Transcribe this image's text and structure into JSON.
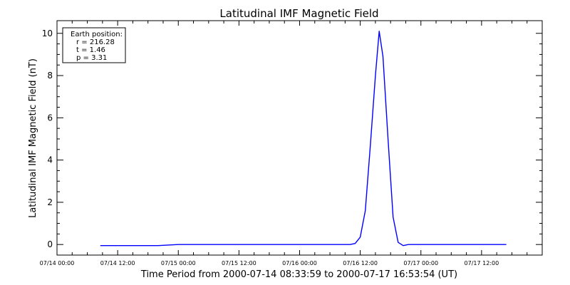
{
  "chart_data": {
    "type": "line",
    "title": "Latitudinal IMF Magnetic Field",
    "xlabel": "Time Period from 2000-07-14 08:33:59 to 2000-07-17 16:53:54 (UT)",
    "ylabel": "Latitudinal IMF Magnetic Field (nT)",
    "xlim": [
      "2000-07-14 00:00",
      "2000-07-18 00:00"
    ],
    "ylim": [
      -0.5,
      10.6
    ],
    "x_tick_labels": [
      "07/14 00:00",
      "07/14 12:00",
      "07/15 00:00",
      "07/15 12:00",
      "07/16 00:00",
      "07/16 12:00",
      "07/17 00:00",
      "07/17 12:00"
    ],
    "y_tick_labels": [
      "0",
      "2",
      "4",
      "6",
      "8",
      "10"
    ],
    "legend_placement": "top-left",
    "legend": {
      "heading": "Earth position:",
      "lines": [
        "r = 216.28",
        "t = 1.46",
        "p = 3.31"
      ]
    },
    "series": [
      {
        "color": "#0000ff",
        "points": [
          [
            "2000-07-14 08:34",
            -0.05
          ],
          [
            "2000-07-14 20:00",
            -0.05
          ],
          [
            "2000-07-15 00:00",
            0.0
          ],
          [
            "2000-07-15 12:00",
            0.0
          ],
          [
            "2000-07-16 00:00",
            0.0
          ],
          [
            "2000-07-16 10:00",
            0.0
          ],
          [
            "2000-07-16 11:00",
            0.05
          ],
          [
            "2000-07-16 12:00",
            0.35
          ],
          [
            "2000-07-16 13:00",
            1.6
          ],
          [
            "2000-07-16 14:00",
            4.7
          ],
          [
            "2000-07-16 15:00",
            8.0
          ],
          [
            "2000-07-16 15:45",
            10.1
          ],
          [
            "2000-07-16 16:30",
            8.9
          ],
          [
            "2000-07-16 17:30",
            5.0
          ],
          [
            "2000-07-16 18:30",
            1.3
          ],
          [
            "2000-07-16 19:30",
            0.1
          ],
          [
            "2000-07-16 20:30",
            -0.05
          ],
          [
            "2000-07-16 21:30",
            0.0
          ],
          [
            "2000-07-17 00:00",
            0.0
          ],
          [
            "2000-07-17 12:00",
            0.0
          ],
          [
            "2000-07-17 16:54",
            0.0
          ]
        ]
      }
    ]
  }
}
